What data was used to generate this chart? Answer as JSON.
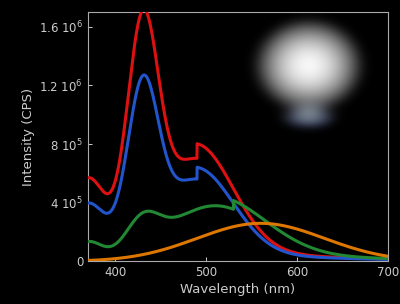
{
  "background_color": "#000000",
  "plot_bg_color": "#000000",
  "text_color": "#cccccc",
  "xlabel": "Wavelength (nm)",
  "ylabel": "Intensity (CPS)",
  "xlim": [
    370,
    700
  ],
  "ylim": [
    0,
    1700000
  ],
  "yticks": [
    0,
    400000,
    800000,
    1200000,
    1600000
  ],
  "xticks": [
    400,
    500,
    600,
    700
  ],
  "line_width": 2.2,
  "spine_color": "#aaaaaa",
  "colors": [
    "#dd1111",
    "#2255cc",
    "#228833",
    "#dd7700"
  ],
  "figsize": [
    4.0,
    3.04
  ],
  "dpi": 100
}
